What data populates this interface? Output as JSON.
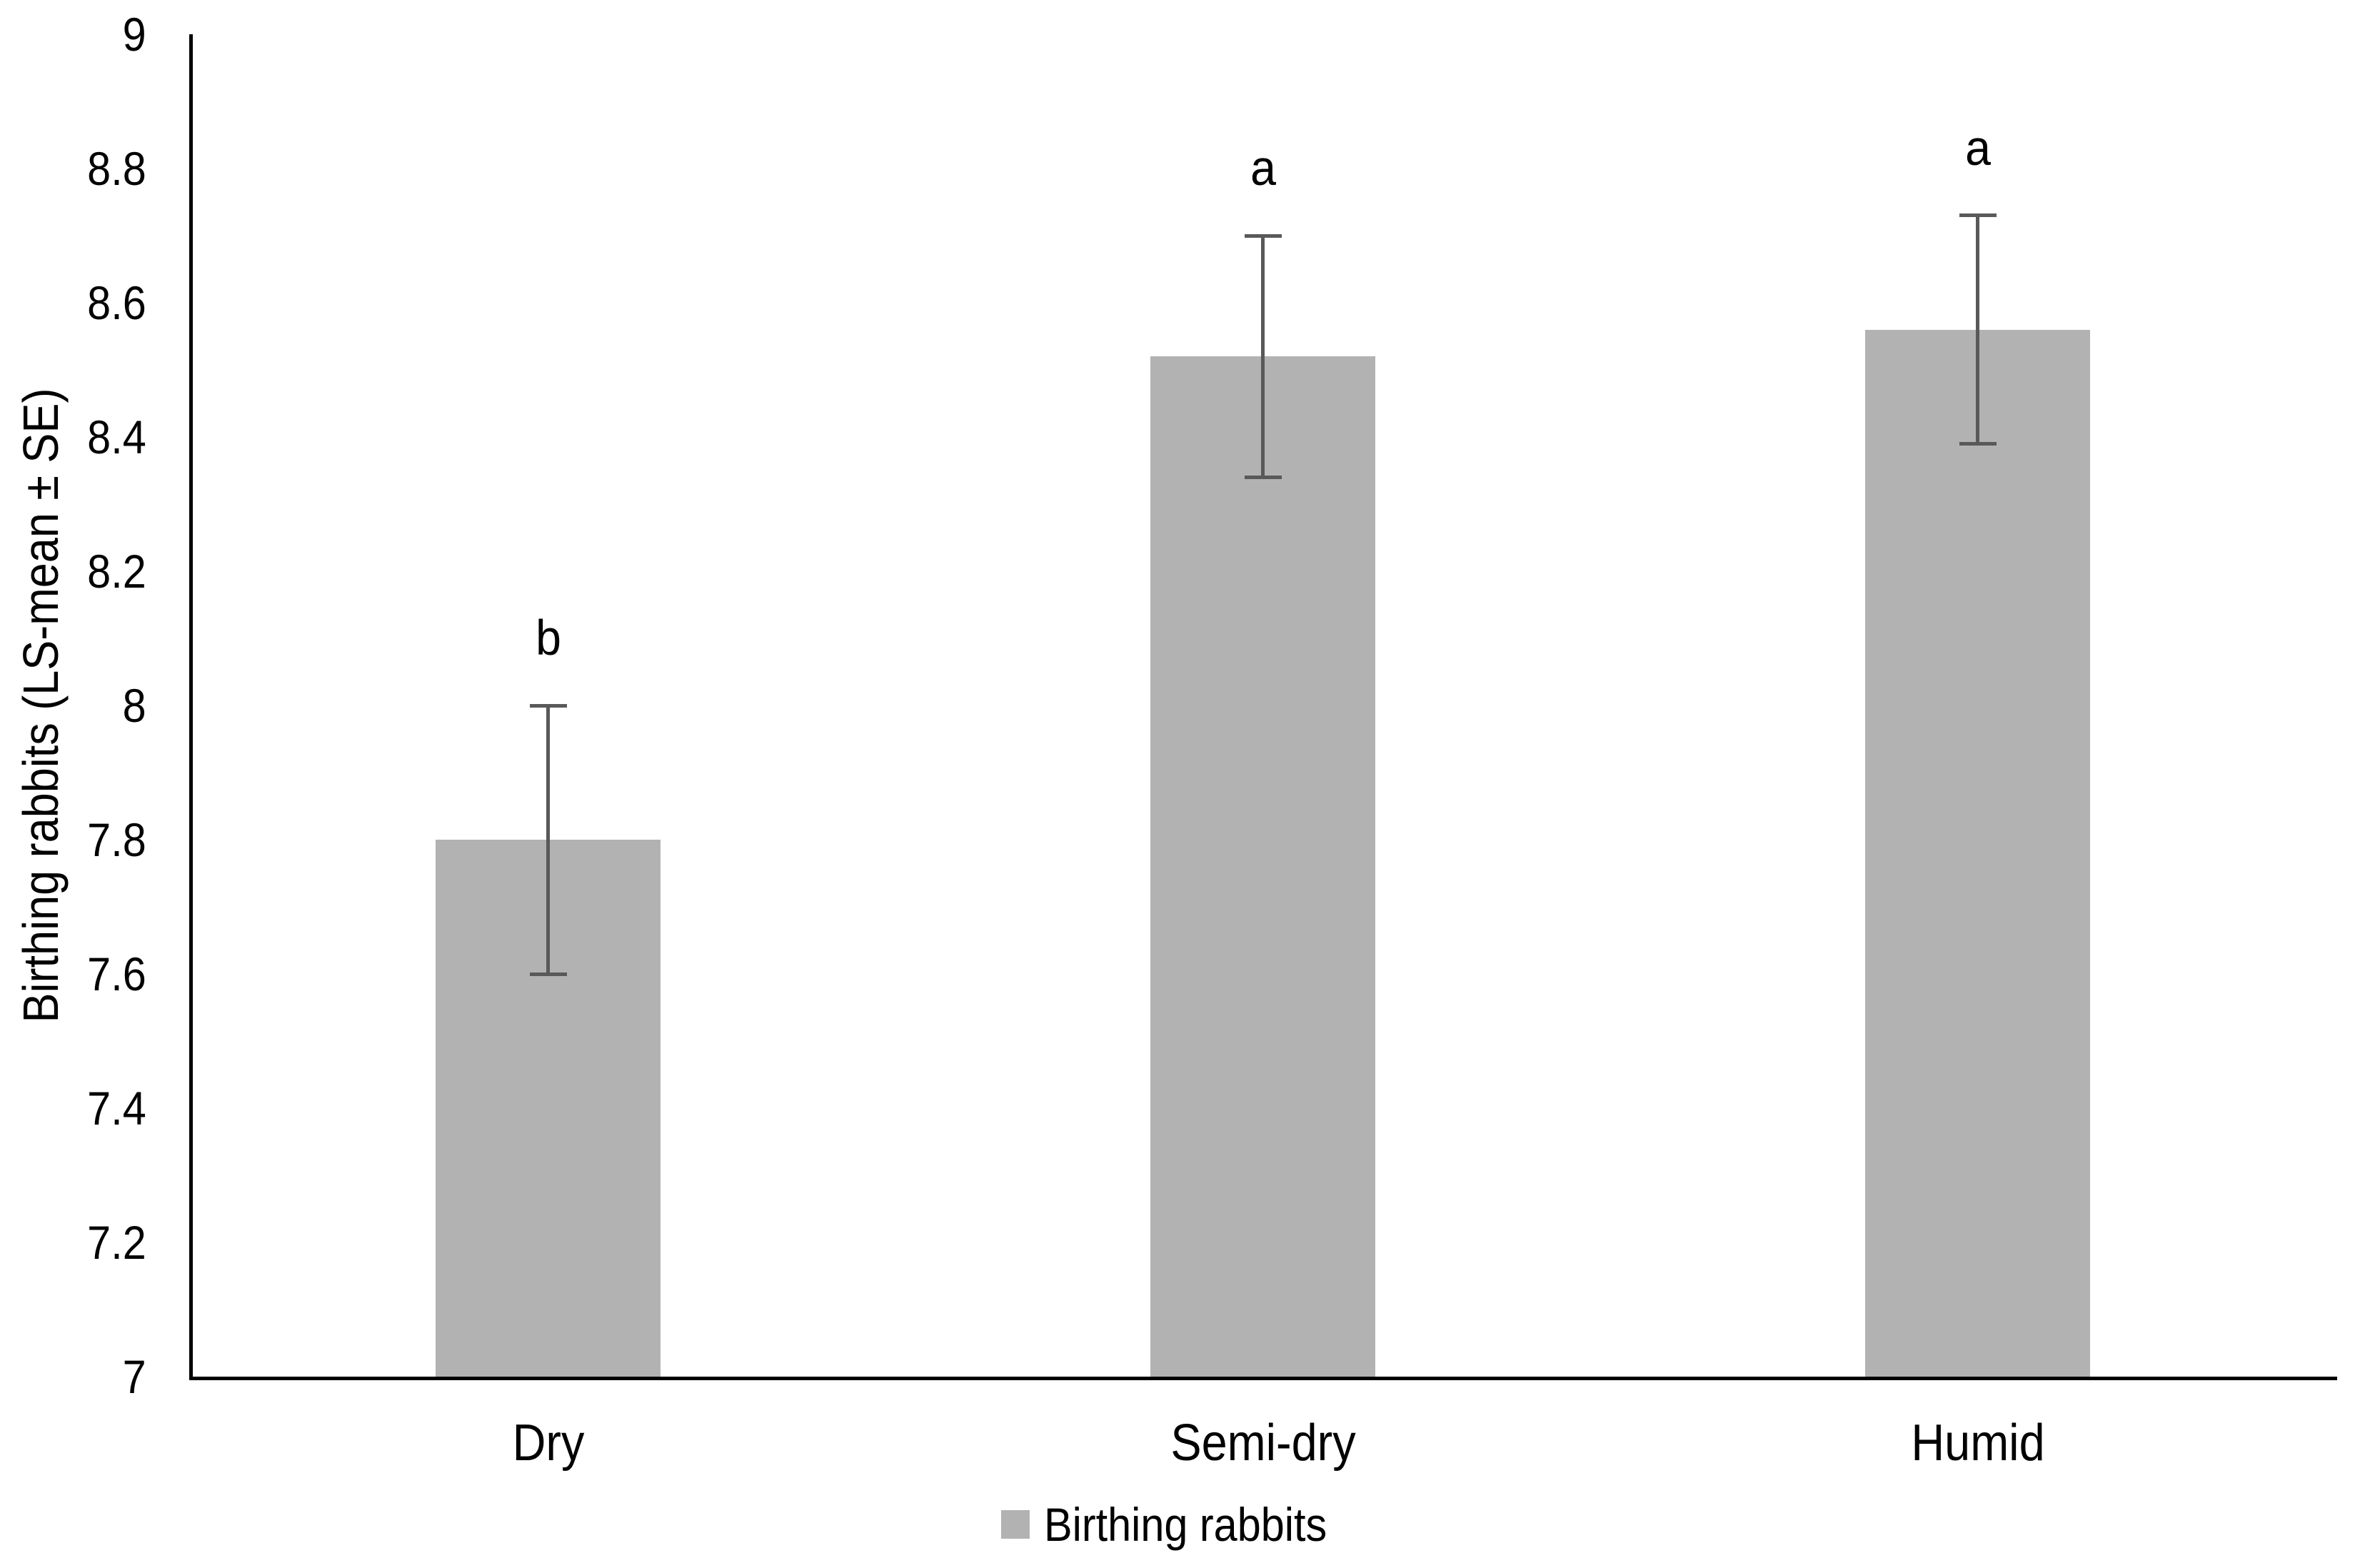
{
  "chart_data": {
    "type": "bar",
    "title": "",
    "xlabel": "",
    "ylabel": "Birthing rabbits (LS-mean ± SE)",
    "ylim": [
      7,
      9
    ],
    "ytick_step": 0.2,
    "yticks": [
      "7",
      "7.2",
      "7.4",
      "7.6",
      "7.8",
      "8",
      "8.2",
      "8.4",
      "8.6",
      "8.8",
      "9"
    ],
    "categories": [
      "Dry",
      "Semi-dry",
      "Humid"
    ],
    "series": [
      {
        "name": "Birthing rabbits",
        "values": [
          7.8,
          8.52,
          8.56
        ],
        "error_lower": [
          7.6,
          8.34,
          8.39
        ],
        "error_upper": [
          8.0,
          8.7,
          8.73
        ],
        "sig_letters": [
          "b",
          "a",
          "a"
        ]
      }
    ],
    "legend": {
      "position": "bottom",
      "entries": [
        "Birthing rabbits"
      ]
    },
    "grid": "off",
    "colors": {
      "bar_fill": "#b2b2b2",
      "error_bar": "#595959",
      "axis": "#000000",
      "text": "#000000",
      "background": "#ffffff"
    }
  }
}
